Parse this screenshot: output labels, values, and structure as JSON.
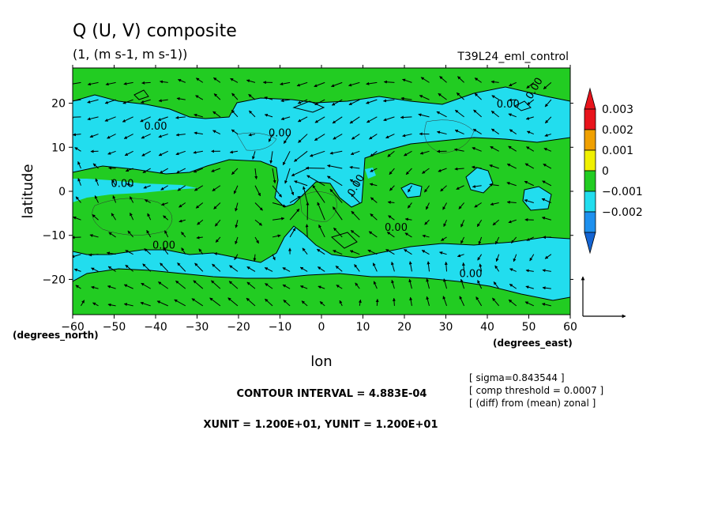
{
  "title": "Q (U, V) composite",
  "subtitle": "(1, (m s-1, m s-1))",
  "run_label": "T39L24_eml_control",
  "chart_data": {
    "type": "heatmap",
    "plot": "contour-fill with wind vector overlay",
    "x_axis": {
      "label": "lon",
      "unit": "(degrees_east)",
      "range": [
        -60,
        60
      ],
      "ticks": [
        -60,
        -50,
        -40,
        -30,
        -20,
        -10,
        0,
        10,
        20,
        30,
        40,
        50,
        60
      ],
      "tick_labels": [
        "−60",
        "−50",
        "−40",
        "−30",
        "−20",
        "−10",
        "0",
        "10",
        "20",
        "30",
        "40",
        "50",
        "60"
      ]
    },
    "y_axis": {
      "label": "latitude",
      "unit": "(degrees_north)",
      "range": [
        -28,
        28
      ],
      "ticks": [
        -20,
        -10,
        0,
        10,
        20
      ],
      "tick_labels": [
        "−20",
        "−10",
        "0",
        "10",
        "20"
      ]
    },
    "colorbar": {
      "levels": [
        {
          "label": "0.003",
          "color": "#e8141c"
        },
        {
          "label": "0.002",
          "color": "#f0a000"
        },
        {
          "label": "0.001",
          "color": "#f0f000"
        },
        {
          "label": "0",
          "color": "#22cc22"
        },
        {
          "label": "−0.001",
          "color": "#22ddee"
        },
        {
          "label": "−0.002",
          "color": "#1e90ee"
        }
      ],
      "below_color": "#1464d2",
      "above_color": "#e8141c"
    },
    "fill_colors": {
      "positive": "#22cc22",
      "negative": "#22ddee"
    },
    "contour_labels": [
      "0.00",
      "0.00",
      "0.00",
      "0.00",
      "0.00",
      "0.00",
      "0.00",
      "0.00",
      "0.00"
    ],
    "contour_interval_text": "CONTOUR INTERVAL = 4.883E-04",
    "unit_vector_text": "XUNIT = 1.200E+01, YUNIT = 1.200E+01",
    "notes": [
      "[ sigma=0.843544 ]",
      "[ comp threshold = 0.0007 ]",
      "[ (diff) from (mean) zonal ]"
    ],
    "grid": false,
    "vector_field": "anomalous wind vectors on a ~4° grid; convergent cyclonic flow near (-5, 0), easterly flow elsewhere"
  }
}
